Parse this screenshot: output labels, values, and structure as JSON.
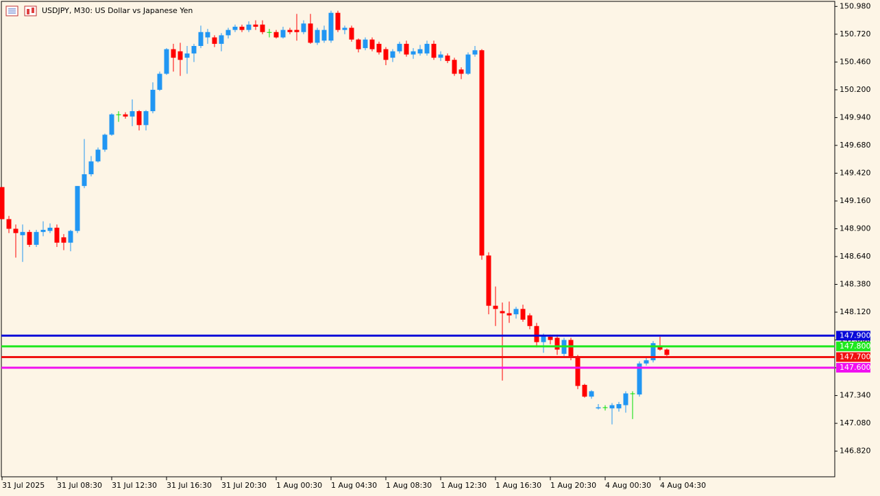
{
  "chart_data": {
    "type": "candlestick",
    "title": "USDJPY, M30:  US Dollar vs Japanese Yen",
    "open": [
      149.29,
      148.99,
      148.9,
      148.84,
      148.87,
      148.75,
      148.87,
      148.88,
      148.91,
      148.82,
      148.77,
      148.88,
      149.3,
      149.41,
      149.53,
      149.64,
      149.78,
      149.97,
      149.97,
      149.95,
      150.0,
      149.87,
      150.0,
      150.2,
      150.35,
      150.58,
      150.56,
      150.5,
      150.54,
      150.61,
      150.69,
      150.69,
      150.63,
      150.71,
      150.76,
      150.79,
      150.76,
      150.81,
      150.81,
      150.74,
      150.74,
      150.69,
      150.76,
      150.76,
      150.74,
      150.82,
      150.64,
      150.66,
      150.66,
      150.92,
      150.76,
      150.78,
      150.67,
      150.59,
      150.67,
      150.63,
      150.58,
      150.5,
      150.56,
      150.63,
      150.53,
      150.54,
      150.54,
      150.63,
      150.5,
      150.52,
      150.48,
      150.39,
      150.35,
      150.53,
      150.57,
      148.65,
      148.18,
      148.13,
      148.11,
      148.1,
      148.15,
      148.09,
      147.99,
      147.84,
      147.89,
      147.88,
      147.73,
      147.86,
      147.7,
      147.44,
      147.33,
      147.22,
      147.23,
      147.22,
      147.22,
      147.25,
      147.36,
      147.35,
      147.64,
      147.67,
      147.8,
      147.77
    ],
    "high": [
      149.29,
      149.02,
      148.94,
      148.94,
      148.89,
      148.89,
      148.97,
      148.95,
      148.94,
      148.85,
      148.89,
      149.3,
      149.74,
      149.58,
      149.66,
      149.79,
      149.98,
      150.0,
      149.99,
      150.11,
      150.01,
      150.01,
      150.27,
      150.37,
      150.59,
      150.63,
      150.64,
      150.61,
      150.63,
      150.8,
      150.77,
      150.71,
      150.73,
      150.78,
      150.81,
      150.81,
      150.84,
      150.85,
      150.85,
      150.77,
      150.76,
      150.79,
      150.78,
      150.91,
      150.85,
      150.91,
      150.78,
      150.8,
      150.94,
      150.94,
      150.8,
      150.8,
      150.68,
      150.69,
      150.69,
      150.65,
      150.6,
      150.58,
      150.65,
      150.66,
      150.59,
      150.62,
      150.66,
      150.66,
      150.56,
      150.54,
      150.5,
      150.41,
      150.55,
      150.61,
      150.58,
      148.68,
      148.36,
      148.21,
      148.22,
      148.17,
      148.19,
      148.11,
      148.02,
      147.92,
      147.91,
      147.91,
      147.88,
      147.88,
      147.72,
      147.45,
      147.39,
      147.26,
      147.25,
      147.27,
      147.28,
      147.38,
      147.38,
      147.66,
      147.7,
      147.85,
      147.89,
      147.78
    ],
    "low": [
      148.99,
      148.86,
      148.63,
      148.59,
      148.73,
      148.73,
      148.83,
      148.86,
      148.73,
      148.7,
      148.69,
      148.86,
      149.28,
      149.39,
      149.52,
      149.62,
      149.77,
      149.9,
      149.93,
      149.86,
      149.82,
      149.82,
      149.98,
      150.19,
      150.34,
      150.37,
      150.33,
      150.35,
      150.46,
      150.59,
      150.63,
      150.6,
      150.56,
      150.68,
      150.74,
      150.74,
      150.74,
      150.76,
      150.72,
      150.69,
      150.68,
      150.68,
      150.72,
      150.66,
      150.72,
      150.63,
      150.62,
      150.64,
      150.64,
      150.74,
      150.72,
      150.65,
      150.55,
      150.57,
      150.56,
      150.53,
      150.43,
      150.46,
      150.54,
      150.51,
      150.49,
      150.52,
      150.52,
      150.48,
      150.47,
      150.45,
      150.33,
      150.3,
      150.34,
      150.51,
      148.61,
      148.1,
      147.99,
      147.48,
      148.02,
      148.06,
      148.03,
      147.96,
      147.79,
      147.74,
      147.82,
      147.72,
      147.7,
      147.67,
      147.4,
      147.32,
      147.31,
      147.21,
      147.2,
      147.07,
      147.19,
      147.18,
      147.12,
      147.33,
      147.62,
      147.65,
      147.76,
      147.71
    ],
    "close": [
      148.99,
      148.9,
      148.86,
      148.87,
      148.75,
      148.87,
      148.89,
      148.91,
      148.77,
      148.77,
      148.88,
      149.3,
      149.41,
      149.53,
      149.64,
      149.78,
      149.97,
      149.97,
      149.95,
      150.0,
      149.87,
      150.0,
      150.2,
      150.35,
      150.58,
      150.5,
      150.48,
      150.54,
      150.61,
      150.74,
      150.74,
      150.63,
      150.71,
      150.76,
      150.79,
      150.76,
      150.81,
      150.79,
      150.74,
      150.74,
      150.69,
      150.76,
      150.74,
      150.74,
      150.82,
      150.64,
      150.76,
      150.76,
      150.92,
      150.76,
      150.78,
      150.67,
      150.58,
      150.67,
      150.58,
      150.55,
      150.48,
      150.56,
      150.63,
      150.53,
      150.56,
      150.58,
      150.63,
      150.5,
      150.53,
      150.47,
      150.35,
      150.35,
      150.53,
      150.57,
      148.65,
      148.18,
      148.15,
      148.11,
      148.09,
      148.15,
      148.05,
      147.99,
      147.84,
      147.9,
      147.86,
      147.77,
      147.86,
      147.7,
      147.43,
      147.33,
      147.38,
      147.23,
      147.23,
      147.25,
      147.26,
      147.36,
      147.36,
      147.64,
      147.67,
      147.83,
      147.77,
      147.72
    ],
    "up_color": "#2196f3",
    "down_color": "#ff0000",
    "doji_color": "#00e000",
    "ylim": [
      146.58,
      151.04
    ],
    "yticks": [
      {
        "value": 150.98,
        "label": "150.980"
      },
      {
        "value": 150.72,
        "label": "150.720"
      },
      {
        "value": 150.46,
        "label": "150.460"
      },
      {
        "value": 150.2,
        "label": "150.200"
      },
      {
        "value": 149.94,
        "label": "149.940"
      },
      {
        "value": 149.68,
        "label": "149.680"
      },
      {
        "value": 149.42,
        "label": "149.420"
      },
      {
        "value": 149.16,
        "label": "149.160"
      },
      {
        "value": 148.9,
        "label": "148.900"
      },
      {
        "value": 148.64,
        "label": "148.640"
      },
      {
        "value": 148.38,
        "label": "148.380"
      },
      {
        "value": 148.12,
        "label": "148.120"
      },
      {
        "value": 147.86,
        "label": "147.860"
      },
      {
        "value": 147.6,
        "label": "147.600"
      },
      {
        "value": 147.34,
        "label": "147.340"
      },
      {
        "value": 147.08,
        "label": "147.080"
      },
      {
        "value": 146.82,
        "label": "146.820"
      }
    ],
    "xticks": [
      {
        "value": 0,
        "label": "31 Jul 2025"
      },
      {
        "value": 8,
        "label": "31 Jul 08:30"
      },
      {
        "value": 16,
        "label": "31 Jul 12:30"
      },
      {
        "value": 24,
        "label": "31 Jul 16:30"
      },
      {
        "value": 32,
        "label": "31 Jul 20:30"
      },
      {
        "value": 40,
        "label": "1 Aug 00:30"
      },
      {
        "value": 48,
        "label": "1 Aug 04:30"
      },
      {
        "value": 56,
        "label": "1 Aug 08:30"
      },
      {
        "value": 64,
        "label": "1 Aug 12:30"
      },
      {
        "value": 72,
        "label": "1 Aug 16:30"
      },
      {
        "value": 80,
        "label": "1 Aug 20:30"
      },
      {
        "value": 88,
        "label": "4 Aug 00:30"
      },
      {
        "value": 96,
        "label": "4 Aug 04:30"
      }
    ],
    "hlines": [
      {
        "value": 147.9,
        "label": "147.900",
        "color": "#0a0ad8"
      },
      {
        "value": 147.8,
        "label": "147.800",
        "color": "#1ee81e"
      },
      {
        "value": 147.7,
        "label": "147.700",
        "color": "#f01010"
      },
      {
        "value": 147.6,
        "label": "147.600",
        "color": "#f010f0"
      }
    ]
  }
}
